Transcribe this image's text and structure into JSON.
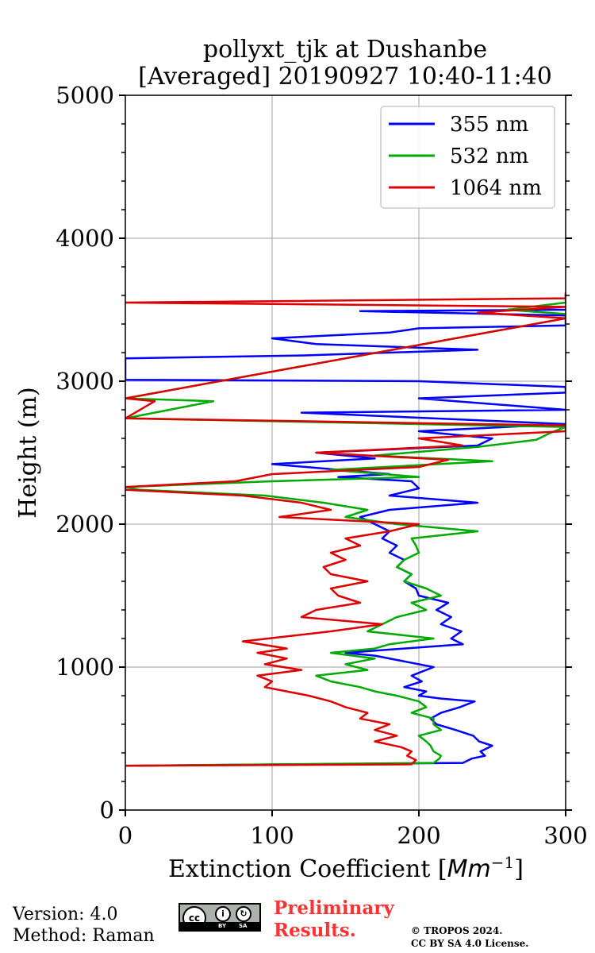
{
  "chart_data": {
    "type": "line",
    "title_line1": "pollyxt_tjk at Dushanbe",
    "title_line2": "[Averaged] 20190927 10:40-11:40",
    "xlabel_text": "Extinction Coefficient [",
    "xlabel_unit": "Mm",
    "xlabel_exp": "−1",
    "xlabel_close": "]",
    "ylabel": "Height (m)",
    "xlim": [
      0,
      300
    ],
    "ylim": [
      0,
      5000
    ],
    "xticks": [
      0,
      100,
      200,
      300
    ],
    "yticks": [
      0,
      1000,
      2000,
      3000,
      4000,
      5000
    ],
    "xtick_labels": [
      "0",
      "100",
      "200",
      "300"
    ],
    "ytick_labels": [
      "0",
      "1000",
      "2000",
      "3000",
      "4000",
      "5000"
    ],
    "grid": true,
    "legend_position": "top-right",
    "series": [
      {
        "name": "355 nm",
        "color": "#0000ff",
        "points": [
          [
            0,
            310
          ],
          [
            230,
            330
          ],
          [
            236,
            360
          ],
          [
            245,
            380
          ],
          [
            242,
            410
          ],
          [
            250,
            450
          ],
          [
            241,
            480
          ],
          [
            237,
            520
          ],
          [
            225,
            560
          ],
          [
            212,
            600
          ],
          [
            208,
            640
          ],
          [
            215,
            680
          ],
          [
            228,
            720
          ],
          [
            238,
            760
          ],
          [
            215,
            780
          ],
          [
            200,
            800
          ],
          [
            205,
            830
          ],
          [
            190,
            860
          ],
          [
            202,
            900
          ],
          [
            195,
            940
          ],
          [
            210,
            1000
          ],
          [
            190,
            1040
          ],
          [
            170,
            1080
          ],
          [
            150,
            1100
          ],
          [
            190,
            1130
          ],
          [
            230,
            1160
          ],
          [
            222,
            1200
          ],
          [
            229,
            1250
          ],
          [
            215,
            1300
          ],
          [
            222,
            1350
          ],
          [
            212,
            1400
          ],
          [
            220,
            1450
          ],
          [
            200,
            1500
          ],
          [
            198,
            1550
          ],
          [
            190,
            1600
          ],
          [
            195,
            1650
          ],
          [
            185,
            1700
          ],
          [
            190,
            1750
          ],
          [
            180,
            1800
          ],
          [
            185,
            1850
          ],
          [
            175,
            1900
          ],
          [
            180,
            1950
          ],
          [
            170,
            2000
          ],
          [
            160,
            2050
          ],
          [
            180,
            2100
          ],
          [
            240,
            2150
          ],
          [
            180,
            2200
          ],
          [
            200,
            2250
          ],
          [
            195,
            2300
          ],
          [
            145,
            2330
          ],
          [
            180,
            2350
          ],
          [
            100,
            2420
          ],
          [
            170,
            2460
          ],
          [
            130,
            2500
          ],
          [
            240,
            2550
          ],
          [
            250,
            2600
          ],
          [
            200,
            2650
          ],
          [
            300,
            2700
          ],
          [
            120,
            2780
          ],
          [
            300,
            2800
          ],
          [
            200,
            2880
          ],
          [
            300,
            2920
          ],
          [
            300,
            2960
          ],
          [
            200,
            3000
          ],
          [
            0,
            3010
          ],
          [
            0,
            3160
          ],
          [
            120,
            3180
          ],
          [
            240,
            3220
          ],
          [
            130,
            3260
          ],
          [
            100,
            3300
          ],
          [
            180,
            3340
          ],
          [
            200,
            3370
          ],
          [
            300,
            3390
          ],
          [
            300,
            3420
          ],
          [
            300,
            3460
          ],
          [
            160,
            3490
          ],
          [
            300,
            3500
          ]
        ]
      },
      {
        "name": "532 nm",
        "color": "#00aa00",
        "points": [
          [
            0,
            310
          ],
          [
            210,
            330
          ],
          [
            214,
            360
          ],
          [
            215,
            380
          ],
          [
            210,
            410
          ],
          [
            208,
            450
          ],
          [
            205,
            480
          ],
          [
            200,
            520
          ],
          [
            215,
            560
          ],
          [
            210,
            600
          ],
          [
            210,
            640
          ],
          [
            195,
            680
          ],
          [
            205,
            720
          ],
          [
            200,
            760
          ],
          [
            185,
            800
          ],
          [
            170,
            830
          ],
          [
            160,
            860
          ],
          [
            140,
            900
          ],
          [
            130,
            940
          ],
          [
            165,
            980
          ],
          [
            150,
            1020
          ],
          [
            170,
            1060
          ],
          [
            140,
            1100
          ],
          [
            170,
            1130
          ],
          [
            180,
            1160
          ],
          [
            210,
            1200
          ],
          [
            165,
            1250
          ],
          [
            175,
            1300
          ],
          [
            185,
            1350
          ],
          [
            205,
            1400
          ],
          [
            195,
            1450
          ],
          [
            215,
            1500
          ],
          [
            205,
            1550
          ],
          [
            190,
            1600
          ],
          [
            195,
            1650
          ],
          [
            185,
            1700
          ],
          [
            190,
            1750
          ],
          [
            200,
            1800
          ],
          [
            198,
            1850
          ],
          [
            195,
            1900
          ],
          [
            240,
            1950
          ],
          [
            185,
            2000
          ],
          [
            150,
            2050
          ],
          [
            165,
            2100
          ],
          [
            135,
            2150
          ],
          [
            95,
            2200
          ],
          [
            10,
            2240
          ],
          [
            0,
            2260
          ],
          [
            100,
            2300
          ],
          [
            200,
            2330
          ],
          [
            140,
            2380
          ],
          [
            250,
            2440
          ],
          [
            170,
            2480
          ],
          [
            240,
            2540
          ],
          [
            280,
            2590
          ],
          [
            290,
            2640
          ],
          [
            300,
            2680
          ],
          [
            0,
            2740
          ],
          [
            60,
            2860
          ],
          [
            0,
            2880
          ],
          [
            300,
            3440
          ],
          [
            300,
            3470
          ],
          [
            260,
            3500
          ],
          [
            300,
            3550
          ],
          [
            300,
            3610
          ]
        ]
      },
      {
        "name": "1064 nm",
        "color": "#dd0000",
        "points": [
          [
            0,
            310
          ],
          [
            195,
            320
          ],
          [
            198,
            350
          ],
          [
            192,
            380
          ],
          [
            195,
            410
          ],
          [
            188,
            440
          ],
          [
            170,
            480
          ],
          [
            185,
            520
          ],
          [
            170,
            560
          ],
          [
            180,
            600
          ],
          [
            160,
            640
          ],
          [
            165,
            680
          ],
          [
            150,
            720
          ],
          [
            140,
            760
          ],
          [
            125,
            800
          ],
          [
            110,
            830
          ],
          [
            95,
            860
          ],
          [
            100,
            900
          ],
          [
            90,
            940
          ],
          [
            120,
            980
          ],
          [
            95,
            1020
          ],
          [
            110,
            1060
          ],
          [
            90,
            1100
          ],
          [
            110,
            1130
          ],
          [
            80,
            1180
          ],
          [
            140,
            1250
          ],
          [
            175,
            1300
          ],
          [
            120,
            1350
          ],
          [
            130,
            1400
          ],
          [
            160,
            1450
          ],
          [
            145,
            1500
          ],
          [
            140,
            1550
          ],
          [
            165,
            1600
          ],
          [
            140,
            1650
          ],
          [
            135,
            1700
          ],
          [
            150,
            1750
          ],
          [
            140,
            1800
          ],
          [
            160,
            1850
          ],
          [
            150,
            1900
          ],
          [
            180,
            1950
          ],
          [
            200,
            2000
          ],
          [
            105,
            2050
          ],
          [
            140,
            2100
          ],
          [
            120,
            2150
          ],
          [
            80,
            2200
          ],
          [
            0,
            2240
          ],
          [
            0,
            2260
          ],
          [
            75,
            2300
          ],
          [
            100,
            2350
          ],
          [
            200,
            2400
          ],
          [
            220,
            2450
          ],
          [
            130,
            2500
          ],
          [
            230,
            2550
          ],
          [
            200,
            2600
          ],
          [
            300,
            2650
          ],
          [
            300,
            2690
          ],
          [
            0,
            2740
          ],
          [
            20,
            2860
          ],
          [
            0,
            2880
          ],
          [
            300,
            3440
          ],
          [
            240,
            3480
          ],
          [
            300,
            3520
          ],
          [
            0,
            3550
          ],
          [
            300,
            3580
          ],
          [
            300,
            3620
          ]
        ]
      }
    ]
  },
  "footer": {
    "version": "Version: 4.0",
    "method": "Method: Raman",
    "license_badge": {
      "cc": "cc",
      "by": "BY",
      "sa": "SA"
    },
    "preliminary_line1": "Preliminary",
    "preliminary_line2": "Results.",
    "copyright_line1": "© TROPOS 2024.",
    "copyright_line2": "CC BY SA 4.0 License."
  }
}
